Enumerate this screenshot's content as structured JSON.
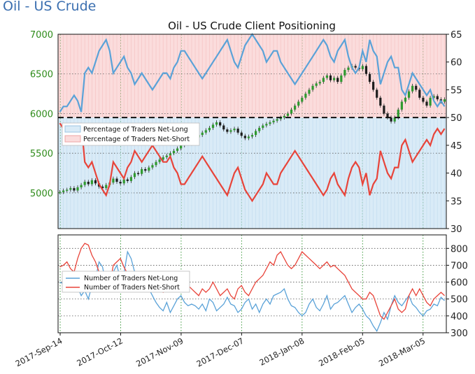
{
  "page": {
    "title": "Oil - US Crude"
  },
  "colors": {
    "net_long": "#5aa2d8",
    "net_short": "#e8443a",
    "price": "#2f9a2f",
    "long_fill": "#d9ebf7",
    "short_fill": "#fbdcdc",
    "left_axis": "#2e8b1a"
  },
  "chart_data": [
    {
      "type": "line",
      "title": "Oil - US Crude Client Positioning",
      "grid": true,
      "legend": "upper-left",
      "x_ticks": [
        "2017-Sep-14",
        "2017-Oct-12",
        "2017-Nov-09",
        "2017-Dec-07",
        "2018-Jan-08",
        "2018-Feb-05",
        "2018-Mar-05"
      ],
      "price_axis": {
        "ticks": [
          5000,
          5500,
          6000,
          6500,
          7000
        ],
        "ylim": [
          4550,
          7000
        ]
      },
      "percent_axis": {
        "ticks": [
          30,
          35,
          40,
          45,
          50,
          55,
          60,
          65
        ],
        "ylim": [
          30,
          65
        ]
      },
      "reference_line": 50,
      "price_series": [
        5010,
        5030,
        5040,
        5060,
        5030,
        5070,
        5100,
        5140,
        5110,
        5160,
        5120,
        5080,
        5060,
        5100,
        5130,
        5180,
        5140,
        5120,
        5170,
        5150,
        5200,
        5250,
        5240,
        5300,
        5280,
        5320,
        5350,
        5390,
        5420,
        5450,
        5470,
        5500,
        5530,
        5560,
        5600,
        5640,
        5620,
        5660,
        5700,
        5730,
        5760,
        5790,
        5820,
        5860,
        5890,
        5850,
        5800,
        5770,
        5790,
        5810,
        5760,
        5720,
        5690,
        5710,
        5730,
        5780,
        5820,
        5850,
        5870,
        5890,
        5910,
        5930,
        5950,
        5970,
        6000,
        6050,
        6100,
        6150,
        6200,
        6250,
        6300,
        6350,
        6380,
        6400,
        6450,
        6480,
        6420,
        6450,
        6400,
        6480,
        6550,
        6580,
        6600,
        6580,
        6560,
        6600,
        6500,
        6400,
        6300,
        6200,
        6100,
        6000,
        5950,
        5900,
        5950,
        6050,
        6150,
        6200,
        6280,
        6350,
        6300,
        6200,
        6150,
        6100,
        6200,
        6220,
        6180,
        6150,
        6180
      ],
      "series": [
        {
          "name": "Percentage of Traders Net-Long",
          "values": [
            51,
            52,
            52,
            53,
            54,
            53,
            51,
            58,
            59,
            58,
            60,
            62,
            63,
            64,
            62,
            58,
            59,
            60,
            61,
            59,
            58,
            56,
            57,
            58,
            57,
            56,
            55,
            56,
            57,
            58,
            58,
            57,
            59,
            60,
            62,
            62,
            61,
            60,
            59,
            58,
            57,
            58,
            59,
            60,
            61,
            62,
            63,
            64,
            62,
            60,
            59,
            61,
            63,
            64,
            65,
            64,
            63,
            62,
            60,
            61,
            62,
            62,
            60,
            59,
            58,
            57,
            56,
            57,
            58,
            59,
            60,
            61,
            62,
            63,
            64,
            63,
            61,
            60,
            62,
            63,
            64,
            61,
            59,
            58,
            59,
            62,
            60,
            64,
            62,
            61,
            56,
            58,
            60,
            61,
            59,
            59,
            55,
            54,
            56,
            58,
            57,
            56,
            55,
            54,
            55,
            53,
            52,
            53,
            52
          ]
        },
        {
          "name": "Percentage of Traders Net-Short",
          "values": [
            49,
            48,
            48,
            47,
            46,
            47,
            49,
            42,
            41,
            42,
            40,
            38,
            37,
            36,
            38,
            42,
            41,
            40,
            39,
            41,
            42,
            44,
            43,
            42,
            43,
            44,
            45,
            44,
            43,
            42,
            42,
            43,
            41,
            40,
            38,
            38,
            39,
            40,
            41,
            42,
            43,
            42,
            41,
            40,
            39,
            38,
            37,
            36,
            38,
            40,
            41,
            39,
            37,
            36,
            35,
            36,
            37,
            38,
            40,
            39,
            38,
            38,
            40,
            41,
            42,
            43,
            44,
            43,
            42,
            41,
            40,
            39,
            38,
            37,
            36,
            37,
            39,
            40,
            38,
            37,
            36,
            39,
            41,
            42,
            41,
            38,
            40,
            36,
            38,
            39,
            44,
            42,
            40,
            39,
            41,
            41,
            45,
            46,
            44,
            42,
            43,
            44,
            45,
            46,
            45,
            47,
            48,
            47,
            48
          ]
        }
      ]
    },
    {
      "type": "line",
      "grid": true,
      "legend": "upper-left",
      "x_ticks": [
        "2017-Sep-14",
        "2017-Oct-12",
        "2017-Nov-09",
        "2017-Dec-07",
        "2018-Jan-08",
        "2018-Feb-05",
        "2018-Mar-05"
      ],
      "y_ticks": [
        300,
        400,
        500,
        600,
        700,
        800
      ],
      "ylim": [
        300,
        880
      ],
      "series": [
        {
          "name": "Number of Traders Net-Long",
          "values": [
            600,
            590,
            610,
            580,
            560,
            570,
            520,
            550,
            500,
            580,
            620,
            720,
            690,
            580,
            640,
            660,
            700,
            620,
            650,
            780,
            740,
            660,
            610,
            580,
            600,
            560,
            520,
            480,
            450,
            430,
            480,
            420,
            460,
            500,
            520,
            480,
            460,
            470,
            460,
            440,
            470,
            430,
            500,
            480,
            430,
            450,
            470,
            510,
            470,
            460,
            420,
            440,
            480,
            500,
            440,
            470,
            420,
            470,
            500,
            470,
            520,
            530,
            540,
            560,
            500,
            460,
            450,
            420,
            400,
            420,
            470,
            500,
            450,
            430,
            470,
            520,
            440,
            470,
            480,
            500,
            520,
            470,
            420,
            450,
            470,
            440,
            400,
            380,
            340,
            310,
            360,
            420,
            380,
            460,
            520,
            480,
            460,
            490,
            520,
            470,
            450,
            420,
            400,
            430,
            440,
            470,
            460,
            510,
            490
          ]
        },
        {
          "name": "Number of Traders Net-Short",
          "values": [
            690,
            700,
            720,
            680,
            660,
            740,
            800,
            830,
            820,
            760,
            720,
            660,
            640,
            580,
            580,
            700,
            720,
            740,
            690,
            650,
            640,
            620,
            600,
            610,
            620,
            600,
            580,
            560,
            570,
            540,
            560,
            590,
            620,
            650,
            640,
            620,
            580,
            560,
            540,
            520,
            560,
            540,
            560,
            600,
            560,
            520,
            540,
            560,
            520,
            500,
            560,
            580,
            540,
            520,
            560,
            600,
            620,
            640,
            680,
            720,
            700,
            760,
            780,
            740,
            700,
            680,
            700,
            740,
            780,
            760,
            740,
            720,
            700,
            680,
            700,
            720,
            690,
            700,
            680,
            660,
            640,
            600,
            560,
            540,
            520,
            500,
            500,
            540,
            520,
            460,
            400,
            380,
            420,
            460,
            500,
            440,
            420,
            440,
            520,
            560,
            520,
            560,
            520,
            480,
            460,
            500,
            520,
            540,
            520
          ]
        }
      ]
    }
  ]
}
